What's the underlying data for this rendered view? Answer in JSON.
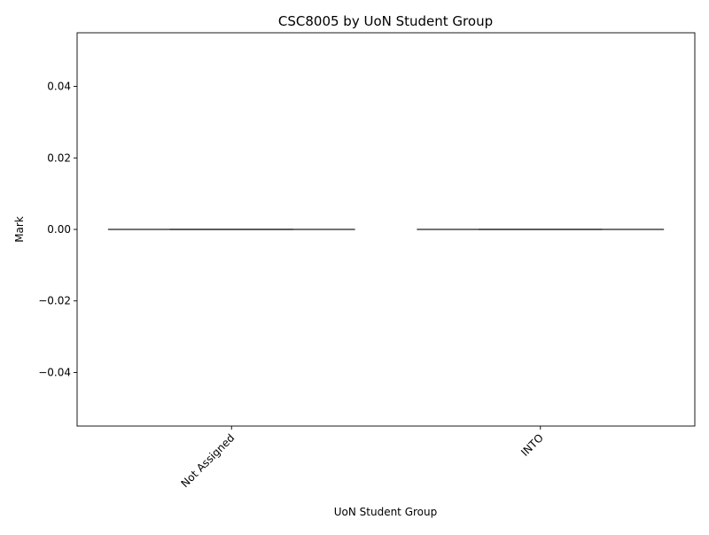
{
  "chart_data": {
    "type": "violin",
    "title": "CSC8005 by UoN Student Group",
    "xlabel": "UoN Student Group",
    "ylabel": "Mark",
    "categories": [
      "Not Assigned",
      "INTO"
    ],
    "values": [
      0,
      0
    ],
    "ylim": [
      -0.055,
      0.055
    ],
    "yticks": [
      -0.04,
      -0.02,
      0.0,
      0.02,
      0.04
    ],
    "ytick_labels": [
      "−0.04",
      "−0.02",
      "0.00",
      "0.02",
      "0.04"
    ],
    "grid": false,
    "legend": "none",
    "colors": {
      "line": "#444444",
      "axis": "#000000",
      "background": "#ffffff"
    }
  }
}
